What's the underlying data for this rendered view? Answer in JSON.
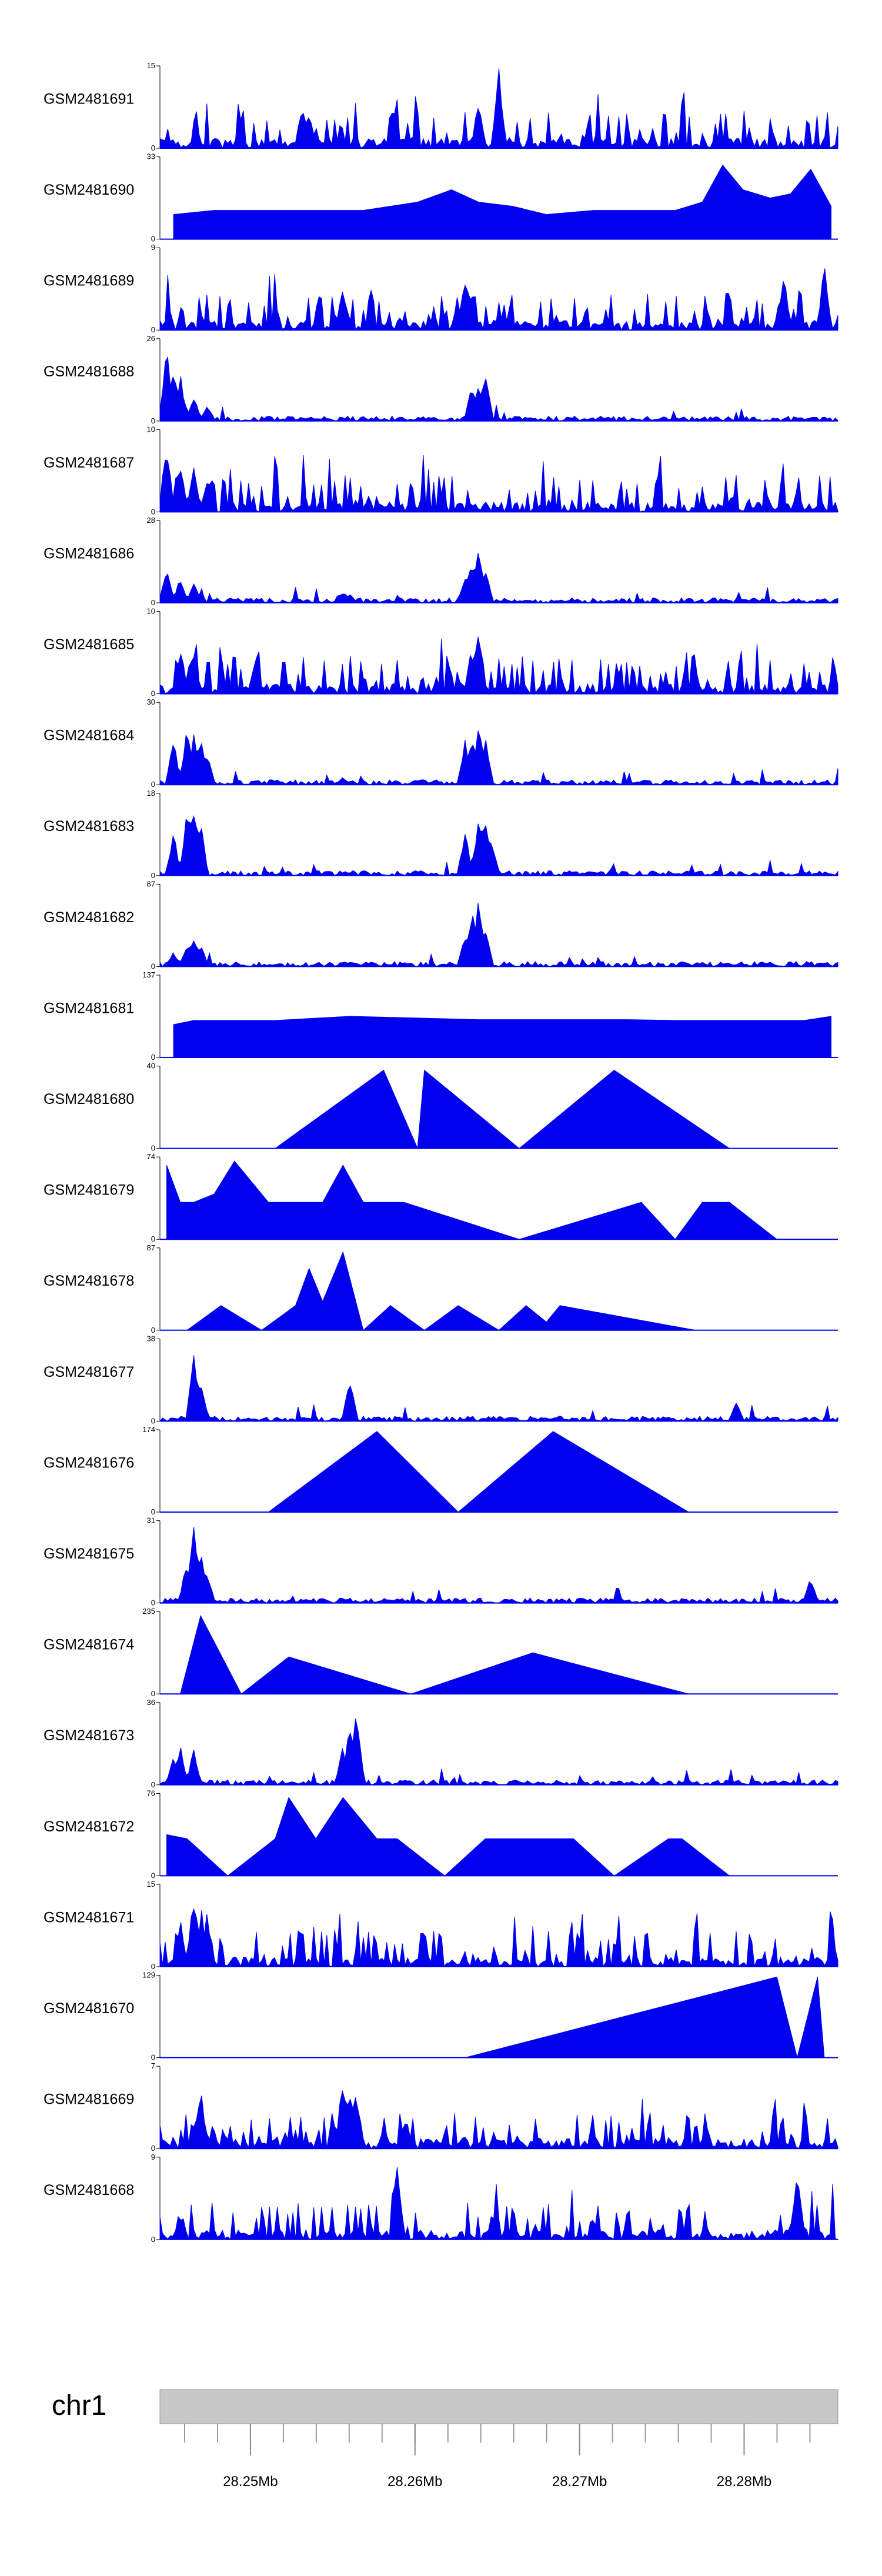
{
  "chart_data": {
    "type": "area",
    "title": "",
    "xlabel": "",
    "ylabel": "",
    "xlim": [
      28.2445,
      28.2857
    ],
    "x_unit": "Mb",
    "fill_color": "#0000ee",
    "tracks": [
      {
        "name": "GSM2481691",
        "ymax": 15,
        "ymin": 0,
        "style": "dense",
        "peaks": [
          [
            0.21,
            0.55
          ],
          [
            0.22,
            0.42
          ],
          [
            0.5,
            1.0
          ],
          [
            0.47,
            0.6
          ]
        ]
      },
      {
        "name": "GSM2481690",
        "ymax": 33,
        "ymin": 0,
        "style": "triangles",
        "tri": [
          [
            0.02,
            0.3
          ],
          [
            0.08,
            0.35
          ],
          [
            0.17,
            0.35
          ],
          [
            0.23,
            0.35
          ],
          [
            0.3,
            0.35
          ],
          [
            0.38,
            0.45
          ],
          [
            0.43,
            0.6
          ],
          [
            0.47,
            0.45
          ],
          [
            0.52,
            0.4
          ],
          [
            0.57,
            0.3
          ],
          [
            0.64,
            0.35
          ],
          [
            0.71,
            0.35
          ],
          [
            0.76,
            0.35
          ],
          [
            0.8,
            0.45
          ],
          [
            0.83,
            0.9
          ],
          [
            0.86,
            0.6
          ],
          [
            0.9,
            0.5
          ],
          [
            0.93,
            0.55
          ],
          [
            0.96,
            0.85
          ],
          [
            0.99,
            0.4
          ]
        ]
      },
      {
        "name": "GSM2481689",
        "ymax": 9,
        "ymin": 0,
        "style": "dense",
        "peaks": [
          [
            0.27,
            0.55
          ],
          [
            0.45,
            0.7
          ],
          [
            0.46,
            0.5
          ],
          [
            0.92,
            0.7
          ],
          [
            0.98,
            0.8
          ]
        ]
      },
      {
        "name": "GSM2481688",
        "ymax": 26,
        "ymin": 0,
        "style": "dense-low",
        "peaks": [
          [
            0.01,
            0.95
          ],
          [
            0.02,
            0.7
          ],
          [
            0.03,
            0.6
          ],
          [
            0.05,
            0.3
          ],
          [
            0.07,
            0.2
          ],
          [
            0.46,
            0.45
          ],
          [
            0.47,
            0.55
          ],
          [
            0.48,
            0.7
          ]
        ]
      },
      {
        "name": "GSM2481687",
        "ymax": 10,
        "ymin": 0,
        "style": "dense",
        "peaks": [
          [
            0.01,
            0.9
          ],
          [
            0.03,
            0.7
          ],
          [
            0.05,
            0.55
          ],
          [
            0.07,
            0.45
          ]
        ]
      },
      {
        "name": "GSM2481686",
        "ymax": 28,
        "ymin": 0,
        "style": "dense-low",
        "peaks": [
          [
            0.01,
            0.5
          ],
          [
            0.03,
            0.35
          ],
          [
            0.05,
            0.25
          ],
          [
            0.27,
            0.15
          ],
          [
            0.28,
            0.12
          ],
          [
            0.45,
            0.3
          ],
          [
            0.46,
            0.6
          ],
          [
            0.47,
            0.75
          ],
          [
            0.48,
            0.5
          ]
        ]
      },
      {
        "name": "GSM2481685",
        "ymax": 10,
        "ymin": 0,
        "style": "dense",
        "peaks": [
          [
            0.03,
            0.6
          ],
          [
            0.05,
            0.55
          ],
          [
            0.46,
            0.6
          ],
          [
            0.47,
            0.95
          ]
        ]
      },
      {
        "name": "GSM2481684",
        "ymax": 30,
        "ymin": 0,
        "style": "dense-low",
        "peaks": [
          [
            0.02,
            0.6
          ],
          [
            0.04,
            0.75
          ],
          [
            0.05,
            0.72
          ],
          [
            0.06,
            0.6
          ],
          [
            0.07,
            0.4
          ],
          [
            0.27,
            0.1
          ],
          [
            0.45,
            0.55
          ],
          [
            0.46,
            0.65
          ],
          [
            0.47,
            0.8
          ],
          [
            0.48,
            0.6
          ]
        ]
      },
      {
        "name": "GSM2481683",
        "ymax": 18,
        "ymin": 0,
        "style": "dense-low",
        "peaks": [
          [
            0.02,
            0.55
          ],
          [
            0.04,
            0.85
          ],
          [
            0.05,
            0.95
          ],
          [
            0.06,
            0.7
          ],
          [
            0.45,
            0.6
          ],
          [
            0.47,
            0.75
          ],
          [
            0.48,
            0.8
          ],
          [
            0.49,
            0.45
          ]
        ]
      },
      {
        "name": "GSM2481682",
        "ymax": 87,
        "ymin": 0,
        "style": "dense-low",
        "peaks": [
          [
            0.02,
            0.2
          ],
          [
            0.04,
            0.3
          ],
          [
            0.05,
            0.4
          ],
          [
            0.06,
            0.3
          ],
          [
            0.45,
            0.4
          ],
          [
            0.46,
            0.75
          ],
          [
            0.47,
            0.9
          ],
          [
            0.48,
            0.55
          ]
        ]
      },
      {
        "name": "GSM2481681",
        "ymax": 137,
        "ymin": 0,
        "style": "triangles",
        "tri": [
          [
            0.02,
            0.4
          ],
          [
            0.05,
            0.45
          ],
          [
            0.17,
            0.45
          ],
          [
            0.28,
            0.5
          ],
          [
            0.47,
            0.46
          ],
          [
            0.69,
            0.46
          ],
          [
            0.76,
            0.45
          ],
          [
            0.81,
            0.45
          ],
          [
            0.87,
            0.45
          ],
          [
            0.92,
            0.45
          ],
          [
            0.95,
            0.45
          ],
          [
            0.99,
            0.5
          ]
        ]
      },
      {
        "name": "GSM2481680",
        "ymax": 40,
        "ymin": 0,
        "style": "triangles",
        "tri": [
          [
            0.17,
            0.0
          ],
          [
            0.33,
            0.95
          ],
          [
            0.38,
            0.0
          ],
          [
            0.39,
            0.95
          ],
          [
            0.53,
            0.0
          ],
          [
            0.67,
            0.95
          ],
          [
            0.84,
            0.0
          ]
        ]
      },
      {
        "name": "GSM2481679",
        "ymax": 74,
        "ymin": 0,
        "style": "triangles",
        "tri": [
          [
            0.01,
            0.9
          ],
          [
            0.03,
            0.45
          ],
          [
            0.05,
            0.45
          ],
          [
            0.08,
            0.55
          ],
          [
            0.11,
            0.95
          ],
          [
            0.16,
            0.45
          ],
          [
            0.2,
            0.45
          ],
          [
            0.24,
            0.45
          ],
          [
            0.27,
            0.9
          ],
          [
            0.3,
            0.45
          ],
          [
            0.36,
            0.45
          ],
          [
            0.53,
            0.0
          ],
          [
            0.71,
            0.45
          ],
          [
            0.76,
            0.0
          ],
          [
            0.8,
            0.45
          ],
          [
            0.84,
            0.45
          ],
          [
            0.91,
            0.0
          ]
        ]
      },
      {
        "name": "GSM2481678",
        "ymax": 87,
        "ymin": 0,
        "style": "triangles",
        "tri": [
          [
            0.04,
            0.0
          ],
          [
            0.09,
            0.3
          ],
          [
            0.15,
            0.0
          ],
          [
            0.2,
            0.3
          ],
          [
            0.22,
            0.75
          ],
          [
            0.24,
            0.35
          ],
          [
            0.27,
            0.95
          ],
          [
            0.3,
            0.0
          ],
          [
            0.34,
            0.3
          ],
          [
            0.39,
            0.0
          ],
          [
            0.44,
            0.3
          ],
          [
            0.5,
            0.0
          ],
          [
            0.54,
            0.3
          ],
          [
            0.57,
            0.1
          ],
          [
            0.59,
            0.3
          ],
          [
            0.79,
            0.0
          ]
        ]
      },
      {
        "name": "GSM2481677",
        "ymax": 38,
        "ymin": 0,
        "style": "dense-low",
        "peaks": [
          [
            0.05,
            0.95
          ],
          [
            0.06,
            0.6
          ],
          [
            0.28,
            0.6
          ],
          [
            0.85,
            0.25
          ]
        ]
      },
      {
        "name": "GSM2481676",
        "ymax": 174,
        "ymin": 0,
        "style": "triangles",
        "tri": [
          [
            0.16,
            0.0
          ],
          [
            0.32,
            0.98
          ],
          [
            0.44,
            0.0
          ],
          [
            0.58,
            0.98
          ],
          [
            0.78,
            0.0
          ]
        ]
      },
      {
        "name": "GSM2481675",
        "ymax": 31,
        "ymin": 0,
        "style": "dense-low",
        "peaks": [
          [
            0.04,
            0.6
          ],
          [
            0.05,
            0.95
          ],
          [
            0.06,
            0.75
          ],
          [
            0.07,
            0.4
          ],
          [
            0.96,
            0.35
          ]
        ]
      },
      {
        "name": "GSM2481674",
        "ymax": 235,
        "ymin": 0,
        "style": "triangles",
        "tri": [
          [
            0.03,
            0.0
          ],
          [
            0.06,
            0.95
          ],
          [
            0.12,
            0.0
          ],
          [
            0.19,
            0.45
          ],
          [
            0.37,
            0.0
          ],
          [
            0.55,
            0.5
          ],
          [
            0.78,
            0.0
          ]
        ]
      },
      {
        "name": "GSM2481673",
        "ymax": 36,
        "ymin": 0,
        "style": "dense-low",
        "peaks": [
          [
            0.02,
            0.35
          ],
          [
            0.03,
            0.5
          ],
          [
            0.05,
            0.45
          ],
          [
            0.28,
            0.8
          ],
          [
            0.29,
            0.95
          ],
          [
            0.27,
            0.5
          ]
        ]
      },
      {
        "name": "GSM2481672",
        "ymax": 76,
        "ymin": 0,
        "style": "triangles",
        "tri": [
          [
            0.01,
            0.5
          ],
          [
            0.04,
            0.45
          ],
          [
            0.1,
            0.0
          ],
          [
            0.17,
            0.45
          ],
          [
            0.19,
            0.95
          ],
          [
            0.23,
            0.45
          ],
          [
            0.27,
            0.95
          ],
          [
            0.32,
            0.45
          ],
          [
            0.35,
            0.45
          ],
          [
            0.42,
            0.0
          ],
          [
            0.48,
            0.45
          ],
          [
            0.52,
            0.45
          ],
          [
            0.58,
            0.45
          ],
          [
            0.61,
            0.45
          ],
          [
            0.67,
            0.0
          ],
          [
            0.75,
            0.45
          ],
          [
            0.77,
            0.45
          ],
          [
            0.84,
            0.0
          ]
        ]
      },
      {
        "name": "GSM2481671",
        "ymax": 15,
        "ymin": 0,
        "style": "dense",
        "peaks": [
          [
            0.03,
            0.6
          ],
          [
            0.05,
            0.9
          ],
          [
            0.07,
            0.7
          ]
        ]
      },
      {
        "name": "GSM2481670",
        "ymax": 129,
        "ymin": 0,
        "style": "triangles",
        "tri": [
          [
            0.45,
            0.0
          ],
          [
            0.91,
            0.98
          ],
          [
            0.94,
            0.0
          ],
          [
            0.97,
            0.98
          ],
          [
            0.98,
            0.0
          ]
        ]
      },
      {
        "name": "GSM2481669",
        "ymax": 7,
        "ymin": 0,
        "style": "dense",
        "peaks": [
          [
            0.06,
            0.8
          ],
          [
            0.27,
            0.9
          ],
          [
            0.28,
            0.85
          ],
          [
            0.29,
            0.75
          ]
        ]
      },
      {
        "name": "GSM2481668",
        "ymax": 9,
        "ymin": 0,
        "style": "dense",
        "peaks": [
          [
            0.35,
            0.95
          ],
          [
            0.94,
            0.9
          ]
        ]
      }
    ],
    "chromosome": "chr1",
    "xticks": [
      {
        "value": 28.25,
        "label": "28.25Mb"
      },
      {
        "value": 28.26,
        "label": "28.26Mb"
      },
      {
        "value": 28.27,
        "label": "28.27Mb"
      },
      {
        "value": 28.28,
        "label": "28.28Mb"
      }
    ]
  }
}
